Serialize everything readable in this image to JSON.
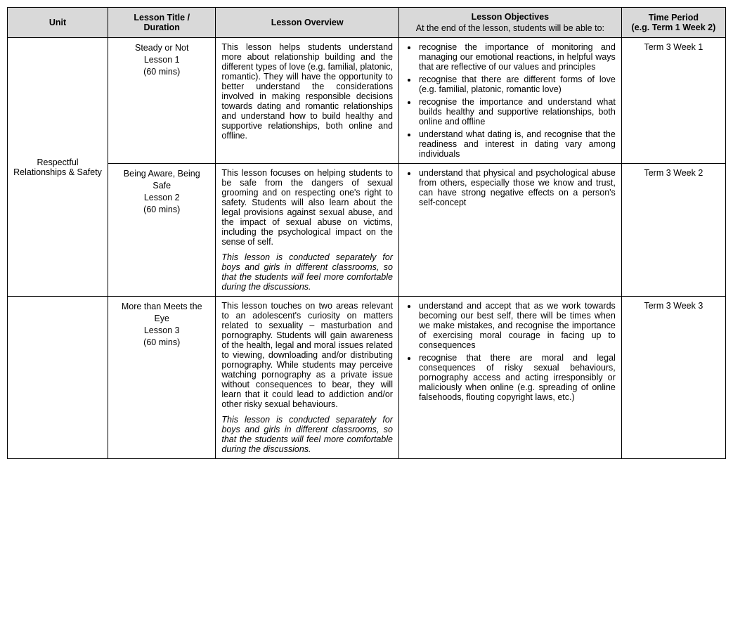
{
  "headers": {
    "unit": "Unit",
    "title": "Lesson Title /\nDuration",
    "overview": "Lesson Overview",
    "objectives": "Lesson Objectives",
    "objectives_sub": "At the end of the lesson, students will be able to:",
    "time": "Time Period\n(e.g. Term 1 Week 2)"
  },
  "unit_name": "Respectful Relationships & Safety",
  "rows": [
    {
      "title_l1": "Steady or Not",
      "title_l2": "Lesson 1",
      "title_l3": "(60 mins)",
      "overview_p1": "This lesson helps students understand more about relationship building and the different types of love (e.g. familial, platonic, romantic). They will have the opportunity to better understand the considerations involved in making responsible decisions towards dating and romantic relationships and understand how to build healthy and supportive relationships, both online and offline.",
      "overview_p2": "",
      "obj1": "recognise the importance of monitoring and managing our emotional reactions, in helpful ways that are reflective of our values and principles",
      "obj2": "recognise that there are different forms of love (e.g. familial, platonic, romantic love)",
      "obj3": "recognise the importance and understand what builds healthy and supportive relationships, both online and offline",
      "obj4": "understand what dating is, and recognise that the readiness and interest in dating vary among individuals",
      "time": "Term 3 Week 1"
    },
    {
      "title_l1": "Being Aware, Being Safe",
      "title_l2": "Lesson 2",
      "title_l3": "(60 mins)",
      "overview_p1": "This lesson focuses on helping students to be safe from the dangers of sexual grooming and on respecting one's right to safety. Students will also learn about the legal provisions against sexual abuse, and the impact of sexual abuse on victims, including the psychological impact on the sense of self.",
      "overview_p2": "This lesson is conducted separately for boys and girls in different classrooms, so that the students will feel more comfortable during the discussions.",
      "obj1": "understand that physical and psychological abuse from others, especially those we know and trust, can have strong negative effects on a person's self-concept",
      "obj2": "",
      "obj3": "",
      "obj4": "",
      "time": "Term 3 Week 2"
    },
    {
      "title_l1": "More than Meets the Eye",
      "title_l2": "Lesson 3",
      "title_l3": "(60 mins)",
      "overview_p1": "This lesson touches on two areas relevant to an adolescent's curiosity on matters related to sexuality – masturbation and pornography. Students will gain awareness of the health, legal and moral issues related to viewing, downloading and/or distributing pornography. While students may perceive watching pornography as a private issue without consequences to bear, they will learn that it could lead to addiction and/or other risky sexual behaviours.",
      "overview_p2": "This lesson is conducted separately for boys and girls in different classrooms, so that the students will feel more comfortable during the discussions.",
      "obj1": "understand and accept that as we work towards becoming our best self, there will be times when we make mistakes, and recognise the importance of exercising moral courage in facing up to consequences",
      "obj2": "recognise that there are moral and legal consequences of risky sexual behaviours, pornography access and acting irresponsibly or maliciously when online (e.g. spreading of online falsehoods, flouting copyright laws, etc.)",
      "obj3": "",
      "obj4": "",
      "time": "Term 3 Week 3"
    }
  ]
}
